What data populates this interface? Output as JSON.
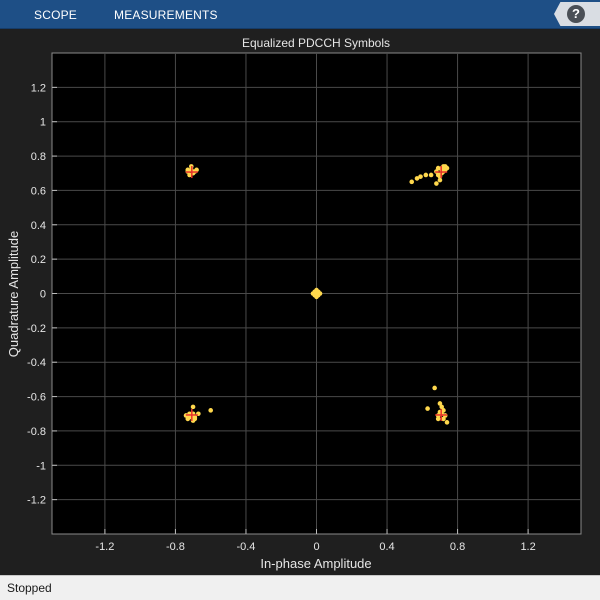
{
  "toolbar": {
    "tabs": [
      "SCOPE",
      "MEASUREMENTS"
    ],
    "help_label": "?"
  },
  "chart_data": {
    "type": "scatter",
    "title": "Equalized PDCCH Symbols",
    "xlabel": "In-phase Amplitude",
    "ylabel": "Quadrature Amplitude",
    "xlim": [
      -1.5,
      1.5
    ],
    "ylim": [
      -1.4,
      1.4
    ],
    "xticks": [
      -1.2,
      -0.8,
      -0.4,
      0,
      0.4,
      0.8,
      1.2
    ],
    "xtick_labels": [
      "-1.2",
      "-0.8",
      "-0.4",
      "0",
      "0.4",
      "0.8",
      "1.2"
    ],
    "yticks": [
      1.2,
      1,
      0.8,
      0.6,
      0.4,
      0.2,
      0,
      -0.2,
      -0.4,
      -0.6,
      -0.8,
      -1,
      -1.2
    ],
    "ytick_labels": [
      "1.2",
      "1",
      "0.8",
      "0.6",
      "0.4",
      "0.2",
      "0",
      "-0.2",
      "-0.4",
      "-0.6",
      "-0.8",
      "-1",
      "-1.2"
    ],
    "grid": true,
    "colors": {
      "background": "#000000",
      "grid": "#4a4a4a",
      "points": "#ffd84d",
      "reference": "#e8322b",
      "text": "#e6e6e6"
    },
    "series": [
      {
        "marker": "dot",
        "points": [
          [
            -0.73,
            0.72
          ],
          [
            -0.71,
            0.72
          ],
          [
            -0.69,
            0.71
          ],
          [
            -0.72,
            0.69
          ],
          [
            -0.7,
            0.7
          ],
          [
            -0.71,
            0.74
          ],
          [
            -0.68,
            0.72
          ],
          [
            -0.73,
            0.71
          ],
          [
            0.69,
            0.73
          ],
          [
            0.71,
            0.73
          ],
          [
            0.73,
            0.72
          ],
          [
            0.71,
            0.7
          ],
          [
            0.69,
            0.69
          ],
          [
            0.72,
            0.74
          ],
          [
            0.7,
            0.68
          ],
          [
            0.72,
            0.71
          ],
          [
            0.68,
            0.71
          ],
          [
            0.71,
            0.72
          ],
          [
            0.65,
            0.69
          ],
          [
            0.62,
            0.69
          ],
          [
            0.59,
            0.68
          ],
          [
            0.57,
            0.67
          ],
          [
            0.54,
            0.65
          ],
          [
            0.68,
            0.64
          ],
          [
            0.7,
            0.66
          ],
          [
            0.74,
            0.73
          ],
          [
            0.73,
            0.74
          ],
          [
            -0.74,
            -0.71
          ],
          [
            -0.71,
            -0.72
          ],
          [
            -0.7,
            -0.7
          ],
          [
            -0.72,
            -0.7
          ],
          [
            -0.69,
            -0.73
          ],
          [
            -0.73,
            -0.73
          ],
          [
            -0.69,
            -0.72
          ],
          [
            -0.67,
            -0.7
          ],
          [
            -0.7,
            -0.66
          ],
          [
            -0.6,
            -0.68
          ],
          [
            -0.72,
            -0.72
          ],
          [
            -0.7,
            -0.74
          ],
          [
            0.69,
            -0.71
          ],
          [
            0.71,
            -0.7
          ],
          [
            0.73,
            -0.71
          ],
          [
            0.72,
            -0.73
          ],
          [
            0.7,
            -0.69
          ],
          [
            0.71,
            -0.66
          ],
          [
            0.7,
            -0.64
          ],
          [
            0.67,
            -0.55
          ],
          [
            0.63,
            -0.67
          ],
          [
            0.74,
            -0.75
          ],
          [
            0.72,
            -0.68
          ],
          [
            0.69,
            -0.73
          ],
          [
            0,
            0
          ],
          [
            0.01,
            0.01
          ],
          [
            -0.01,
            0.01
          ],
          [
            0.01,
            -0.01
          ],
          [
            -0.01,
            -0.01
          ],
          [
            0,
            0.02
          ],
          [
            0.02,
            0
          ],
          [
            -0.02,
            0
          ],
          [
            0,
            -0.02
          ]
        ]
      },
      {
        "marker": "plus",
        "points": [
          [
            0.7071,
            0.7071
          ],
          [
            -0.7071,
            0.7071
          ],
          [
            -0.7071,
            -0.7071
          ],
          [
            0.7071,
            -0.7071
          ]
        ]
      }
    ]
  },
  "status": {
    "text": "Stopped"
  }
}
